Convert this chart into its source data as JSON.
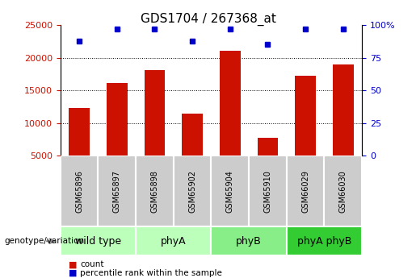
{
  "title": "GDS1704 / 267368_at",
  "samples": [
    "GSM65896",
    "GSM65897",
    "GSM65898",
    "GSM65902",
    "GSM65904",
    "GSM65910",
    "GSM66029",
    "GSM66030"
  ],
  "counts": [
    12300,
    16100,
    18100,
    11400,
    21100,
    7700,
    17200,
    19000
  ],
  "percentiles": [
    88,
    97,
    97,
    88,
    97,
    85,
    97,
    97
  ],
  "groups": [
    {
      "label": "wild type",
      "start": 0,
      "end": 2,
      "color": "#bbffbb"
    },
    {
      "label": "phyA",
      "start": 2,
      "end": 4,
      "color": "#bbffbb"
    },
    {
      "label": "phyB",
      "start": 4,
      "end": 6,
      "color": "#88ee88"
    },
    {
      "label": "phyA phyB",
      "start": 6,
      "end": 8,
      "color": "#33cc33"
    }
  ],
  "bar_color": "#cc1100",
  "dot_color": "#0000cc",
  "left_ylim": [
    5000,
    25000
  ],
  "left_yticks": [
    5000,
    10000,
    15000,
    20000,
    25000
  ],
  "right_ylim": [
    0,
    100
  ],
  "right_yticks": [
    0,
    25,
    50,
    75,
    100
  ],
  "left_tick_color": "#cc1100",
  "right_tick_color": "#0000cc",
  "background_color": "#ffffff",
  "plot_bg_color": "#ffffff",
  "sample_bg_color": "#cccccc",
  "grid_color": "#000000",
  "title_fontsize": 11,
  "tick_fontsize": 8,
  "sample_fontsize": 7,
  "group_fontsize": 9,
  "legend_fontsize": 8
}
